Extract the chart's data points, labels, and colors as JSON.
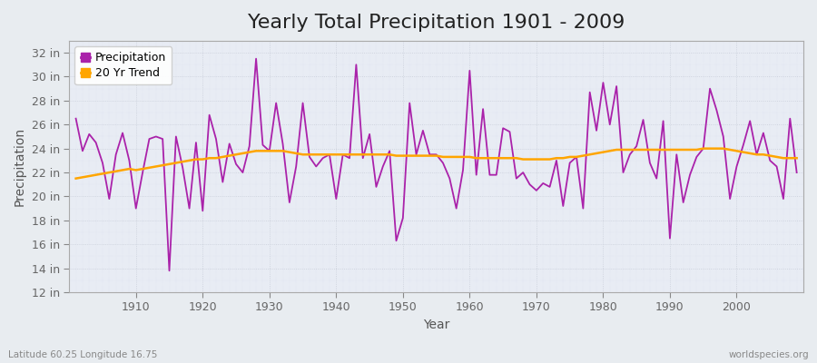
{
  "title": "Yearly Total Precipitation 1901 - 2009",
  "xlabel": "Year",
  "ylabel": "Precipitation",
  "years": [
    1901,
    1902,
    1903,
    1904,
    1905,
    1906,
    1907,
    1908,
    1909,
    1910,
    1911,
    1912,
    1913,
    1914,
    1915,
    1916,
    1917,
    1918,
    1919,
    1920,
    1921,
    1922,
    1923,
    1924,
    1925,
    1926,
    1927,
    1928,
    1929,
    1930,
    1931,
    1932,
    1933,
    1934,
    1935,
    1936,
    1937,
    1938,
    1939,
    1940,
    1941,
    1942,
    1943,
    1944,
    1945,
    1946,
    1947,
    1948,
    1949,
    1950,
    1951,
    1952,
    1953,
    1954,
    1955,
    1956,
    1957,
    1958,
    1959,
    1960,
    1961,
    1962,
    1963,
    1964,
    1965,
    1966,
    1967,
    1968,
    1969,
    1970,
    1971,
    1972,
    1973,
    1974,
    1975,
    1976,
    1977,
    1978,
    1979,
    1980,
    1981,
    1982,
    1983,
    1984,
    1985,
    1986,
    1987,
    1988,
    1989,
    1990,
    1991,
    1992,
    1993,
    1994,
    1995,
    1996,
    1997,
    1998,
    1999,
    2000,
    2001,
    2002,
    2003,
    2004,
    2005,
    2006,
    2007,
    2008,
    2009
  ],
  "precip_in": [
    26.5,
    23.8,
    25.2,
    24.5,
    22.8,
    19.8,
    23.5,
    25.3,
    23.0,
    19.0,
    22.0,
    24.8,
    25.0,
    24.8,
    13.8,
    25.0,
    22.4,
    19.0,
    24.5,
    18.8,
    26.8,
    24.8,
    21.2,
    24.4,
    22.7,
    22.0,
    24.2,
    31.5,
    24.3,
    23.8,
    27.8,
    24.4,
    19.5,
    22.5,
    27.8,
    23.3,
    22.5,
    23.2,
    23.5,
    19.8,
    23.5,
    23.2,
    31.0,
    23.2,
    25.2,
    20.8,
    22.5,
    23.8,
    16.3,
    18.2,
    27.8,
    23.5,
    25.5,
    23.5,
    23.5,
    22.8,
    21.5,
    19.0,
    22.2,
    30.5,
    21.8,
    27.3,
    21.8,
    21.8,
    25.7,
    25.4,
    21.5,
    22.0,
    21.0,
    20.5,
    21.1,
    20.8,
    23.0,
    19.2,
    22.8,
    23.3,
    19.0,
    28.7,
    25.5,
    29.5,
    26.0,
    29.2,
    22.0,
    23.5,
    24.2,
    26.4,
    22.8,
    21.5,
    26.3,
    16.5,
    23.5,
    19.5,
    21.8,
    23.3,
    24.0,
    29.0,
    27.2,
    25.0,
    19.8,
    22.5,
    24.3,
    26.3,
    23.5,
    25.3,
    23.0,
    22.5,
    19.8,
    26.5,
    22.0
  ],
  "trend_in": [
    21.5,
    21.6,
    21.7,
    21.8,
    21.9,
    22.0,
    22.1,
    22.2,
    22.3,
    22.2,
    22.3,
    22.4,
    22.5,
    22.6,
    22.7,
    22.8,
    22.9,
    23.0,
    23.1,
    23.1,
    23.2,
    23.2,
    23.3,
    23.4,
    23.5,
    23.6,
    23.7,
    23.8,
    23.8,
    23.8,
    23.8,
    23.8,
    23.7,
    23.6,
    23.5,
    23.5,
    23.5,
    23.5,
    23.5,
    23.5,
    23.5,
    23.5,
    23.5,
    23.5,
    23.5,
    23.5,
    23.5,
    23.5,
    23.4,
    23.4,
    23.4,
    23.4,
    23.4,
    23.4,
    23.4,
    23.3,
    23.3,
    23.3,
    23.3,
    23.3,
    23.2,
    23.2,
    23.2,
    23.2,
    23.2,
    23.2,
    23.2,
    23.1,
    23.1,
    23.1,
    23.1,
    23.1,
    23.2,
    23.2,
    23.3,
    23.3,
    23.4,
    23.5,
    23.6,
    23.7,
    23.8,
    23.9,
    23.9,
    23.9,
    23.9,
    23.9,
    23.9,
    23.9,
    23.9,
    23.9,
    23.9,
    23.9,
    23.9,
    23.9,
    24.0,
    24.0,
    24.0,
    24.0,
    23.9,
    23.8,
    23.7,
    23.6,
    23.5,
    23.5,
    23.4,
    23.3,
    23.2,
    23.2,
    23.2
  ],
  "precip_color": "#AA22AA",
  "trend_color": "#FFA500",
  "bg_color": "#E8ECF0",
  "plot_bg_color": "#E8ECF4",
  "grid_color": "#C8CDD8",
  "grid_color2": "#DADEEA",
  "ylim": [
    12,
    33
  ],
  "yticks": [
    12,
    14,
    16,
    18,
    20,
    22,
    24,
    26,
    28,
    30,
    32
  ],
  "xlim": [
    1900,
    2010
  ],
  "xticks": [
    1910,
    1920,
    1930,
    1940,
    1950,
    1960,
    1970,
    1980,
    1990,
    2000
  ],
  "title_fontsize": 16,
  "axis_label_fontsize": 10,
  "tick_fontsize": 9,
  "legend_fontsize": 9,
  "bottom_left_text": "Latitude 60.25 Longitude 16.75",
  "bottom_right_text": "worldspecies.org"
}
